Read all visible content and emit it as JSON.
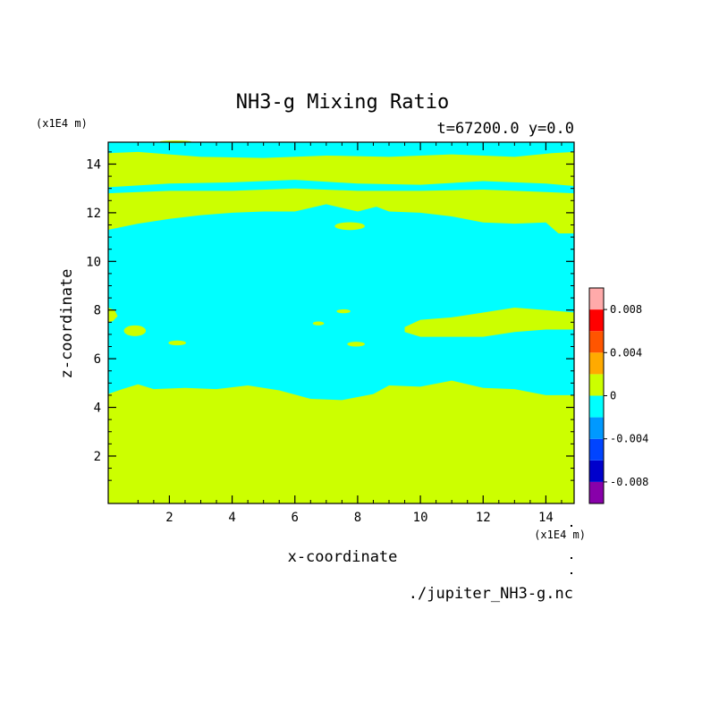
{
  "chart_data": {
    "type": "heatmap",
    "title": "NH3-g Mixing Ratio",
    "subtitle": "t=67200.0 y=0.0",
    "xlabel": "x-coordinate",
    "ylabel": "z-coordinate",
    "x_unit": "(x1E4 m)",
    "y_unit": "(x1E4 m)",
    "source": "./jupiter_NH3-g.nc",
    "xlim": [
      0.05,
      14.9
    ],
    "ylim": [
      0.05,
      14.9
    ],
    "x_ticks": [
      2,
      4,
      6,
      8,
      10,
      12,
      14
    ],
    "y_ticks": [
      2,
      4,
      6,
      8,
      10,
      12,
      14
    ],
    "x_tick_labels": [
      "2",
      "4",
      "6",
      "8",
      "10",
      "12",
      "14"
    ],
    "y_tick_labels": [
      "2",
      "4",
      "6",
      "8",
      "10",
      "12",
      "14"
    ],
    "colorbar": {
      "levels": [
        -0.01,
        -0.008,
        -0.006,
        -0.004,
        -0.002,
        0,
        0.002,
        0.004,
        0.006,
        0.008,
        0.01
      ],
      "colors": [
        "#8800aa",
        "#0000cc",
        "#0044ff",
        "#0099ff",
        "#00ffff",
        "#ccff00",
        "#ffaa00",
        "#ff5500",
        "#ff0000",
        "#ffaaaa"
      ],
      "tick_values": [
        -0.008,
        -0.004,
        0,
        0.004,
        0.008
      ],
      "tick_labels": [
        "-0.008",
        "-0.004",
        "0",
        "0.004",
        "0.008"
      ]
    },
    "regions": {
      "background_level": 0,
      "negative_band": {
        "level": -0.002,
        "lower_boundary": {
          "x": [
            0.05,
            0.5,
            1.0,
            1.5,
            2.5,
            3.5,
            4.5,
            5.5,
            6.5,
            7.5,
            8.5,
            9.0,
            10.0,
            11.0,
            12.0,
            13.0,
            14.0,
            14.9
          ],
          "z": [
            4.55,
            4.75,
            4.95,
            4.75,
            4.8,
            4.75,
            4.9,
            4.7,
            4.35,
            4.3,
            4.55,
            4.9,
            4.85,
            5.1,
            4.8,
            4.75,
            4.5,
            4.5
          ]
        },
        "upper_boundary": {
          "x": [
            0.05,
            1.0,
            2.0,
            3.0,
            4.0,
            5.0,
            6.0,
            7.0,
            8.0,
            8.6,
            9.0,
            10.0,
            11.0,
            12.0,
            13.0,
            14.0,
            14.4,
            14.9
          ],
          "z": [
            11.3,
            11.55,
            11.75,
            11.9,
            12.0,
            12.05,
            12.05,
            12.35,
            12.05,
            12.25,
            12.05,
            12.0,
            11.85,
            11.6,
            11.55,
            11.6,
            11.15,
            11.15
          ]
        },
        "upper_strips": [
          {
            "x": [
              0.05,
              2.0,
              4.0,
              6.0,
              8.0,
              10.0,
              12.0,
              14.0,
              14.9
            ],
            "z_low": [
              12.8,
              12.9,
              12.9,
              13.0,
              12.9,
              12.9,
              12.95,
              12.85,
              12.8
            ],
            "z_high": [
              13.05,
              13.2,
              13.25,
              13.35,
              13.2,
              13.15,
              13.3,
              13.2,
              13.1
            ]
          },
          {
            "x": [
              0.05,
              1.0,
              3.0,
              5.0,
              7.0,
              9.0,
              11.0,
              13.0,
              14.2,
              14.9
            ],
            "z_low": [
              14.45,
              14.5,
              14.3,
              14.25,
              14.35,
              14.3,
              14.4,
              14.3,
              14.45,
              14.5
            ],
            "z_high": [
              14.9,
              14.9,
              14.9,
              14.9,
              14.9,
              14.9,
              14.9,
              14.9,
              14.9,
              14.9
            ]
          }
        ]
      },
      "right_positive_lobe": {
        "level": 0,
        "x": [
          9.5,
          10.0,
          11.0,
          12.0,
          13.0,
          14.0,
          14.9,
          14.9,
          14.0,
          13.0,
          12.0,
          11.0,
          10.0,
          9.5
        ],
        "z": [
          7.3,
          7.6,
          7.7,
          7.9,
          8.1,
          8.0,
          7.9,
          7.2,
          7.2,
          7.1,
          6.9,
          6.9,
          6.9,
          7.1
        ]
      },
      "left_positive_lobe": {
        "level": 0,
        "x": [
          0.05,
          0.25,
          0.35,
          0.2,
          0.05
        ],
        "z": [
          8.1,
          8.0,
          7.75,
          7.55,
          7.5
        ]
      },
      "islands": [
        {
          "level": 0,
          "cx": 0.9,
          "cz": 7.15,
          "rx": 0.35,
          "rz": 0.22
        },
        {
          "level": 0,
          "cx": 2.25,
          "cz": 6.65,
          "rx": 0.28,
          "rz": 0.1
        },
        {
          "level": 0,
          "cx": 6.75,
          "cz": 7.45,
          "rx": 0.18,
          "rz": 0.08
        },
        {
          "level": 0,
          "cx": 7.55,
          "cz": 7.95,
          "rx": 0.22,
          "rz": 0.08
        },
        {
          "level": 0,
          "cx": 7.95,
          "cz": 6.6,
          "rx": 0.28,
          "rz": 0.1
        },
        {
          "level": 0,
          "cx": 7.75,
          "cz": 11.45,
          "rx": 0.48,
          "rz": 0.16
        },
        {
          "level": 0,
          "cx": 2.2,
          "cz": 14.92,
          "rx": 0.5,
          "rz": 0.05
        }
      ]
    }
  }
}
